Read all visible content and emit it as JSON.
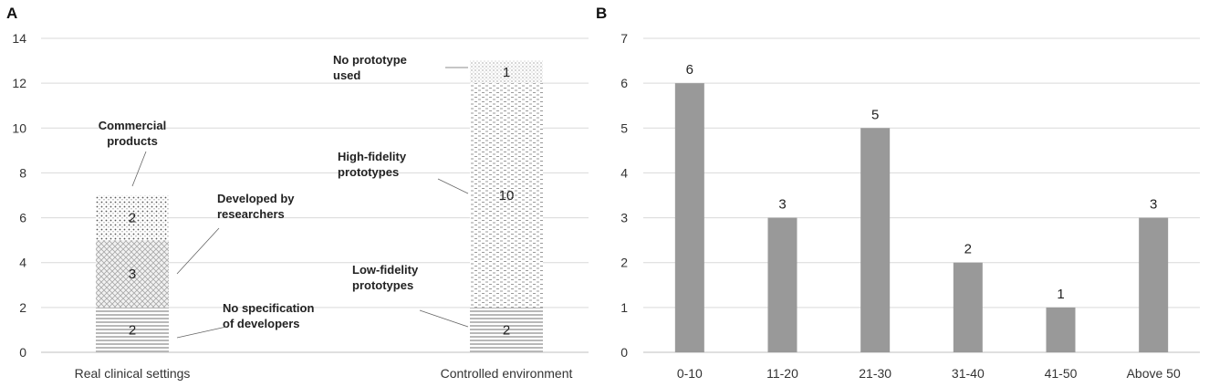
{
  "chart_data": [
    {
      "panel_label": "A",
      "type": "bar",
      "stacked": true,
      "categories": [
        "Real clinical settings",
        "Controlled environment"
      ],
      "ylim": [
        0,
        14
      ],
      "yticks": [
        0,
        2,
        4,
        6,
        8,
        10,
        12,
        14
      ],
      "grid": true,
      "series": [
        {
          "name": "No specification of developers",
          "bar": 0,
          "value": 2,
          "label": "2",
          "pattern": "hlines"
        },
        {
          "name": "Developed by researchers",
          "bar": 0,
          "value": 3,
          "label": "3",
          "pattern": "crosshatch"
        },
        {
          "name": "Commercial products",
          "bar": 0,
          "value": 2,
          "label": "2",
          "pattern": "dots"
        },
        {
          "name": "Low-fidelity prototypes",
          "bar": 1,
          "value": 2,
          "label": "2",
          "pattern": "hlines"
        },
        {
          "name": "High-fidelity prototypes",
          "bar": 1,
          "value": 10,
          "label": "10",
          "pattern": "dashes"
        },
        {
          "name": "No prototype used",
          "bar": 1,
          "value": 1,
          "label": "1",
          "pattern": "finedots"
        }
      ],
      "annotations": [
        {
          "series": 0,
          "lines": [
            "No specification",
            "of developers"
          ]
        },
        {
          "series": 1,
          "lines": [
            "Developed by",
            "researchers"
          ]
        },
        {
          "series": 2,
          "lines": [
            "Commercial",
            "products"
          ]
        },
        {
          "series": 3,
          "lines": [
            "Low-fidelity",
            "prototypes"
          ]
        },
        {
          "series": 4,
          "lines": [
            "High-fidelity",
            "prototypes"
          ]
        },
        {
          "series": 5,
          "lines": [
            "No prototype",
            "used"
          ]
        }
      ]
    },
    {
      "panel_label": "B",
      "type": "bar",
      "categories": [
        "0-10",
        "11-20",
        "21-30",
        "31-40",
        "41-50",
        "Above 50"
      ],
      "values": [
        6,
        3,
        5,
        2,
        1,
        3
      ],
      "data_labels": [
        "6",
        "3",
        "5",
        "2",
        "1",
        "3"
      ],
      "ylim": [
        0,
        7
      ],
      "yticks": [
        0,
        1,
        2,
        3,
        4,
        5,
        6,
        7
      ],
      "grid": true,
      "bar_color": "#999999"
    }
  ]
}
